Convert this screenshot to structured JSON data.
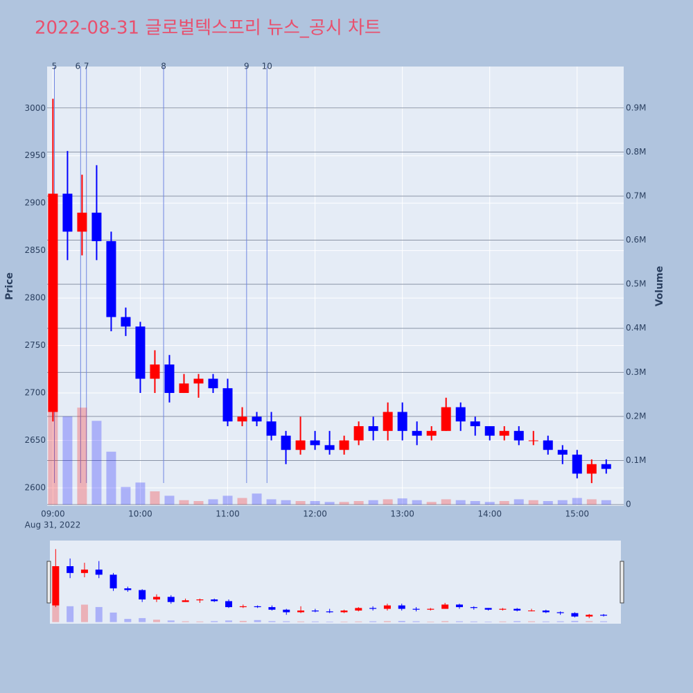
{
  "chart_data": {
    "type": "candlestick",
    "title": "2022-08-31 글로벌텍스프리 뉴스_공시 차트",
    "y_label": "Price",
    "y2_label": "Volume",
    "x_date_label": "Aug 31, 2022",
    "increasing_color": "#ff0000",
    "decreasing_color": "#0000ff",
    "xlim": [
      "2022-08-31 08:56",
      "2022-08-31 15:32"
    ],
    "xticks": [
      {
        "value": "2022-08-31 09:00",
        "label": "09:00"
      },
      {
        "value": "2022-08-31 10:00",
        "label": "10:00"
      },
      {
        "value": "2022-08-31 11:00",
        "label": "11:00"
      },
      {
        "value": "2022-08-31 12:00",
        "label": "12:00"
      },
      {
        "value": "2022-08-31 13:00",
        "label": "13:00"
      },
      {
        "value": "2022-08-31 14:00",
        "label": "14:00"
      },
      {
        "value": "2022-08-31 15:00",
        "label": "15:00"
      }
    ],
    "ylim": [
      2581,
      3044
    ],
    "yticks": [
      2600,
      2650,
      2700,
      2750,
      2800,
      2850,
      2900,
      2950,
      3000
    ],
    "y2lim": [
      -3000,
      994000
    ],
    "y2ticks": [
      0,
      {
        "value": 100000,
        "label": "0.1M"
      },
      {
        "value": 200000,
        "label": "0.2M"
      },
      {
        "value": 300000,
        "label": "0.3M"
      },
      {
        "value": 400000,
        "label": "0.4M"
      },
      {
        "value": 500000,
        "label": "0.5M"
      },
      {
        "value": 600000,
        "label": "0.6M"
      },
      {
        "value": 700000,
        "label": "0.7M"
      },
      {
        "value": 800000,
        "label": "0.8M"
      },
      {
        "value": 900000,
        "label": "0.9M"
      }
    ],
    "events": [
      {
        "label": "5",
        "x": "2022-08-31 09:01"
      },
      {
        "label": "6",
        "x": "2022-08-31 09:19"
      },
      {
        "label": "7",
        "x": "2022-08-31 09:23"
      },
      {
        "label": "8",
        "x": "2022-08-31 10:16"
      },
      {
        "label": "9",
        "x": "2022-08-31 11:13"
      },
      {
        "label": "10",
        "x": "2022-08-31 11:27"
      }
    ],
    "x": [
      "2022-08-31 09:00",
      "2022-08-31 09:10",
      "2022-08-31 09:20",
      "2022-08-31 09:30",
      "2022-08-31 09:40",
      "2022-08-31 09:50",
      "2022-08-31 10:00",
      "2022-08-31 10:10",
      "2022-08-31 10:20",
      "2022-08-31 10:30",
      "2022-08-31 10:40",
      "2022-08-31 10:50",
      "2022-08-31 11:00",
      "2022-08-31 11:10",
      "2022-08-31 11:20",
      "2022-08-31 11:30",
      "2022-08-31 11:40",
      "2022-08-31 11:50",
      "2022-08-31 12:00",
      "2022-08-31 12:10",
      "2022-08-31 12:20",
      "2022-08-31 12:30",
      "2022-08-31 12:40",
      "2022-08-31 12:50",
      "2022-08-31 13:00",
      "2022-08-31 13:10",
      "2022-08-31 13:20",
      "2022-08-31 13:30",
      "2022-08-31 13:40",
      "2022-08-31 13:50",
      "2022-08-31 14:00",
      "2022-08-31 14:10",
      "2022-08-31 14:20",
      "2022-08-31 14:30",
      "2022-08-31 14:40",
      "2022-08-31 14:50",
      "2022-08-31 15:00",
      "2022-08-31 15:10",
      "2022-08-31 15:20"
    ],
    "open": [
      2680,
      2910,
      2870,
      2890,
      2860,
      2780,
      2770,
      2715,
      2730,
      2700,
      2710,
      2715,
      2705,
      2670,
      2675,
      2670,
      2655,
      2640,
      2650,
      2645,
      2640,
      2650,
      2665,
      2660,
      2680,
      2660,
      2655,
      2660,
      2685,
      2670,
      2665,
      2655,
      2660,
      2650,
      2650,
      2640,
      2635,
      2615,
      2625
    ],
    "high": [
      3010,
      2955,
      2930,
      2940,
      2870,
      2790,
      2775,
      2745,
      2740,
      2720,
      2720,
      2720,
      2715,
      2685,
      2680,
      2680,
      2660,
      2675,
      2660,
      2660,
      2655,
      2670,
      2675,
      2690,
      2690,
      2670,
      2665,
      2695,
      2690,
      2675,
      2665,
      2665,
      2665,
      2660,
      2655,
      2645,
      2640,
      2630,
      2630
    ],
    "low": [
      2670,
      2840,
      2845,
      2840,
      2765,
      2760,
      2700,
      2700,
      2690,
      2700,
      2695,
      2700,
      2665,
      2665,
      2665,
      2650,
      2625,
      2635,
      2640,
      2635,
      2635,
      2645,
      2650,
      2650,
      2650,
      2645,
      2650,
      2660,
      2660,
      2655,
      2650,
      2650,
      2645,
      2645,
      2635,
      2625,
      2610,
      2605,
      2615
    ],
    "close": [
      2910,
      2870,
      2890,
      2860,
      2780,
      2770,
      2715,
      2730,
      2700,
      2710,
      2715,
      2705,
      2670,
      2675,
      2670,
      2655,
      2640,
      2650,
      2645,
      2640,
      2650,
      2665,
      2660,
      2680,
      2660,
      2655,
      2660,
      2685,
      2670,
      2665,
      2655,
      2660,
      2650,
      2650,
      2640,
      2635,
      2615,
      2625,
      2620
    ],
    "volume": [
      290000,
      200000,
      220000,
      190000,
      120000,
      40000,
      50000,
      30000,
      20000,
      10000,
      8000,
      12000,
      20000,
      15000,
      25000,
      12000,
      10000,
      8000,
      8000,
      6000,
      6000,
      8000,
      10000,
      12000,
      14000,
      10000,
      6000,
      12000,
      10000,
      8000,
      6000,
      8000,
      12000,
      10000,
      8000,
      10000,
      15000,
      12000,
      10000
    ]
  }
}
